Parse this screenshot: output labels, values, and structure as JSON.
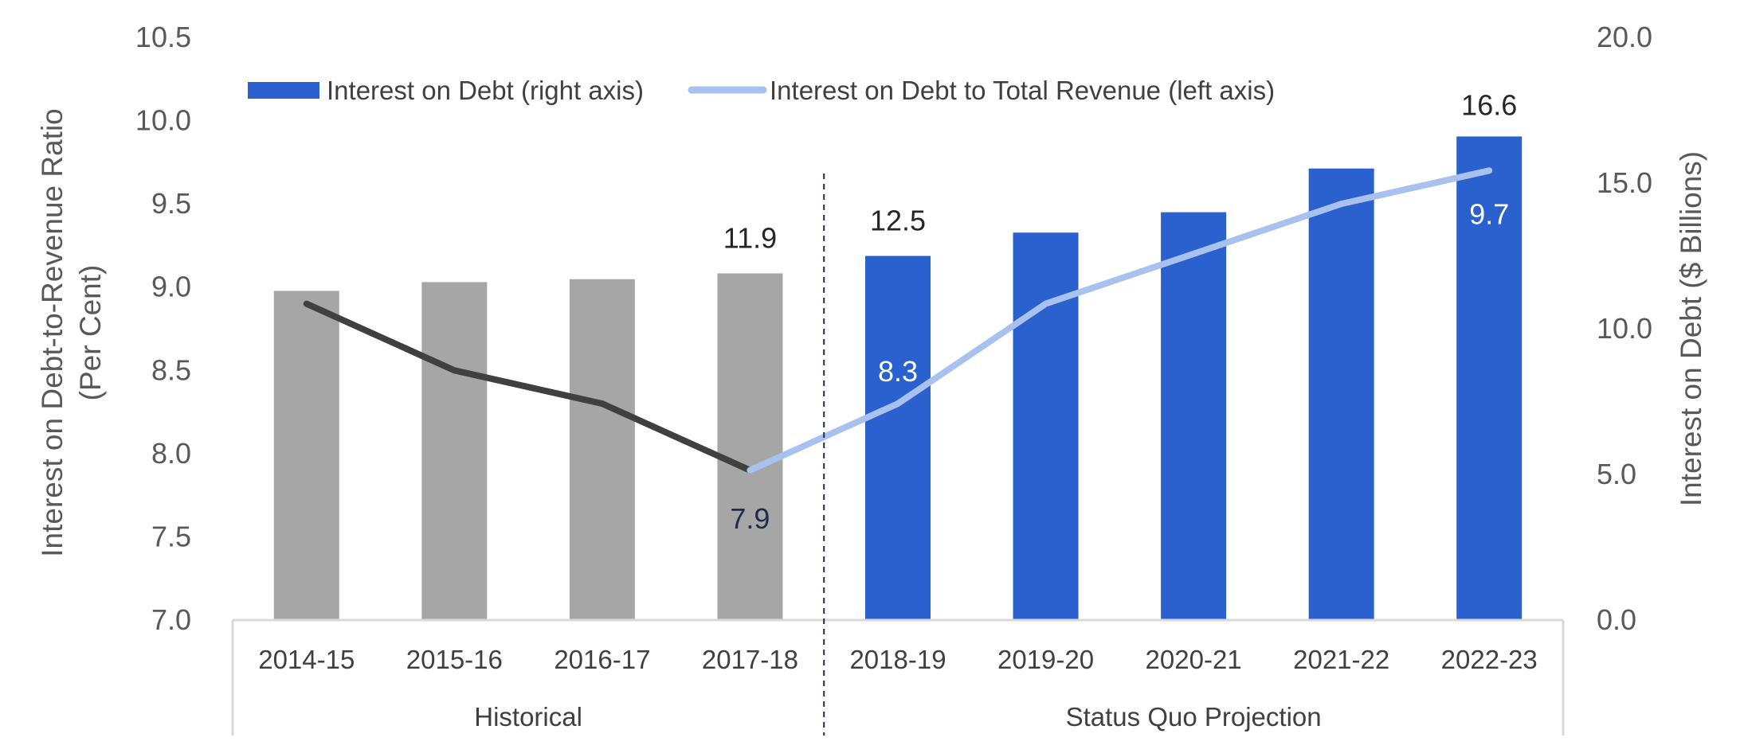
{
  "chart_data": {
    "type": "bar",
    "categories": [
      "2014-15",
      "2015-16",
      "2016-17",
      "2017-18",
      "2018-19",
      "2019-20",
      "2020-21",
      "2021-22",
      "2022-23"
    ],
    "groups": [
      {
        "label": "Historical",
        "from": 0,
        "to": 3
      },
      {
        "label": "Status Quo Projection",
        "from": 4,
        "to": 8
      }
    ],
    "series": [
      {
        "name": "Interest on Debt  (right axis)",
        "type": "bar",
        "axis": "right",
        "values": [
          11.3,
          11.6,
          11.7,
          11.9,
          12.5,
          13.3,
          14.0,
          15.5,
          16.6
        ],
        "colors": [
          "#a6a6a6",
          "#a6a6a6",
          "#a6a6a6",
          "#a6a6a6",
          "#2b60cf",
          "#2b60cf",
          "#2b60cf",
          "#2b60cf",
          "#2b60cf"
        ]
      },
      {
        "name": "Interest on Debt to Total Revenue (left axis)",
        "type": "line",
        "axis": "left",
        "values": [
          8.9,
          8.5,
          8.3,
          7.9,
          8.3,
          8.9,
          9.2,
          9.5,
          9.7
        ],
        "historical_color": "#404040",
        "projection_color": "#a8c1ee"
      }
    ],
    "data_labels": [
      {
        "series": 0,
        "index": 3,
        "text": "11.9",
        "style": "dark"
      },
      {
        "series": 0,
        "index": 4,
        "text": "12.5",
        "style": "dark"
      },
      {
        "series": 0,
        "index": 8,
        "text": "16.6",
        "style": "dark"
      },
      {
        "series": 1,
        "index": 3,
        "text": "7.9",
        "style": "navy"
      },
      {
        "series": 1,
        "index": 4,
        "text": "8.3",
        "style": "white"
      },
      {
        "series": 1,
        "index": 8,
        "text": "9.7",
        "style": "white"
      }
    ],
    "y_left": {
      "label_line1": "Interest on Debt-to-Revenue Ratio",
      "label_line2": "(Per Cent)",
      "min": 7.0,
      "max": 10.5,
      "ticks": [
        "7.0",
        "7.5",
        "8.0",
        "8.5",
        "9.0",
        "9.5",
        "10.0",
        "10.5"
      ]
    },
    "y_right": {
      "label": "Interest on Debt ($ Billions)",
      "min": 0,
      "max": 20,
      "ticks": [
        "0.0",
        "5.0",
        "10.0",
        "15.0",
        "20.0"
      ]
    },
    "legend": {
      "position": "top-left",
      "bar_color": "#2b60cf",
      "line_color": "#a8c1ee"
    },
    "grid": false
  }
}
